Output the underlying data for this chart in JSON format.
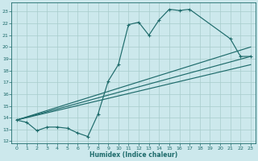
{
  "bg_color": "#cce8ec",
  "grid_color": "#a8cccc",
  "line_color": "#1e6b6b",
  "xlabel": "Humidex (Indice chaleur)",
  "xlim": [
    -0.5,
    23.5
  ],
  "ylim": [
    11.8,
    23.8
  ],
  "yticks": [
    12,
    13,
    14,
    15,
    16,
    17,
    18,
    19,
    20,
    21,
    22,
    23
  ],
  "xticks": [
    0,
    1,
    2,
    3,
    4,
    5,
    6,
    7,
    8,
    9,
    10,
    11,
    12,
    13,
    14,
    15,
    16,
    17,
    18,
    19,
    20,
    21,
    22,
    23
  ],
  "curve_x": [
    0,
    1,
    2,
    3,
    4,
    5,
    6,
    7,
    8,
    9,
    10,
    11,
    12,
    13,
    14,
    15,
    16,
    17,
    21,
    22,
    23
  ],
  "curve_y": [
    13.8,
    13.6,
    12.9,
    13.2,
    13.2,
    13.1,
    12.7,
    12.4,
    14.3,
    17.1,
    18.5,
    21.9,
    22.1,
    21.0,
    22.3,
    23.2,
    23.1,
    23.2,
    20.7,
    19.2,
    19.2
  ],
  "line1": [
    [
      0,
      23
    ],
    [
      13.8,
      19.2
    ]
  ],
  "line2": [
    [
      0,
      23
    ],
    [
      13.8,
      20.0
    ]
  ],
  "line3": [
    [
      0,
      23
    ],
    [
      13.8,
      18.5
    ]
  ]
}
